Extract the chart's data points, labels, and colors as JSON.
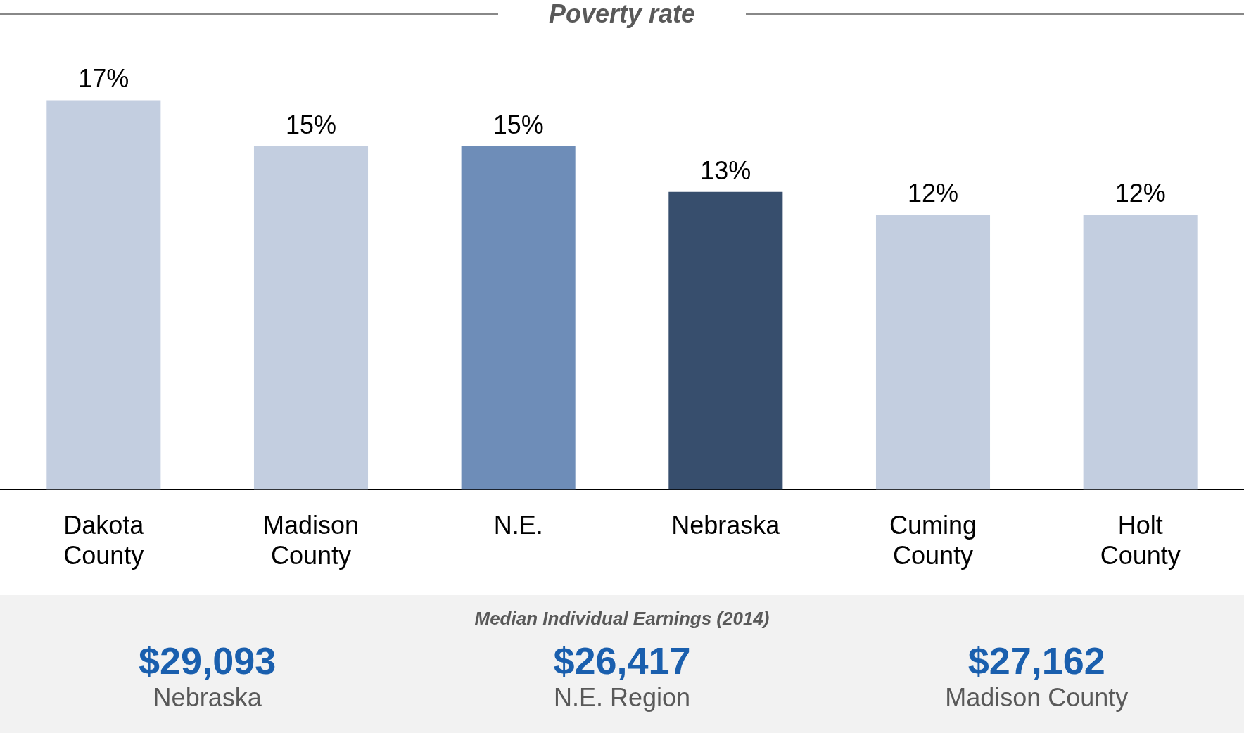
{
  "chart_data": [
    {
      "type": "bar",
      "title": "Poverty rate",
      "categories": [
        "Dakota County",
        "Madison County",
        "N.E.",
        "Nebraska",
        "Cuming County",
        "Holt County"
      ],
      "values": [
        17,
        15,
        15,
        13,
        12,
        12
      ],
      "value_labels": [
        "17%",
        "15%",
        "15%",
        "13%",
        "12%",
        "12%"
      ],
      "colors": [
        "#c3cee0",
        "#c3cee0",
        "#6e8db8",
        "#374e6d",
        "#c3cee0",
        "#c3cee0"
      ],
      "legend": false,
      "grid": false,
      "tick_labels": "x"
    },
    {
      "type": "other",
      "title": "Median Individual Earnings (2014)",
      "annotations": [
        "$29,093",
        "Nebraska",
        "$26,417",
        "N.E. Region",
        "$27,162",
        "Madison County"
      ]
    }
  ]
}
